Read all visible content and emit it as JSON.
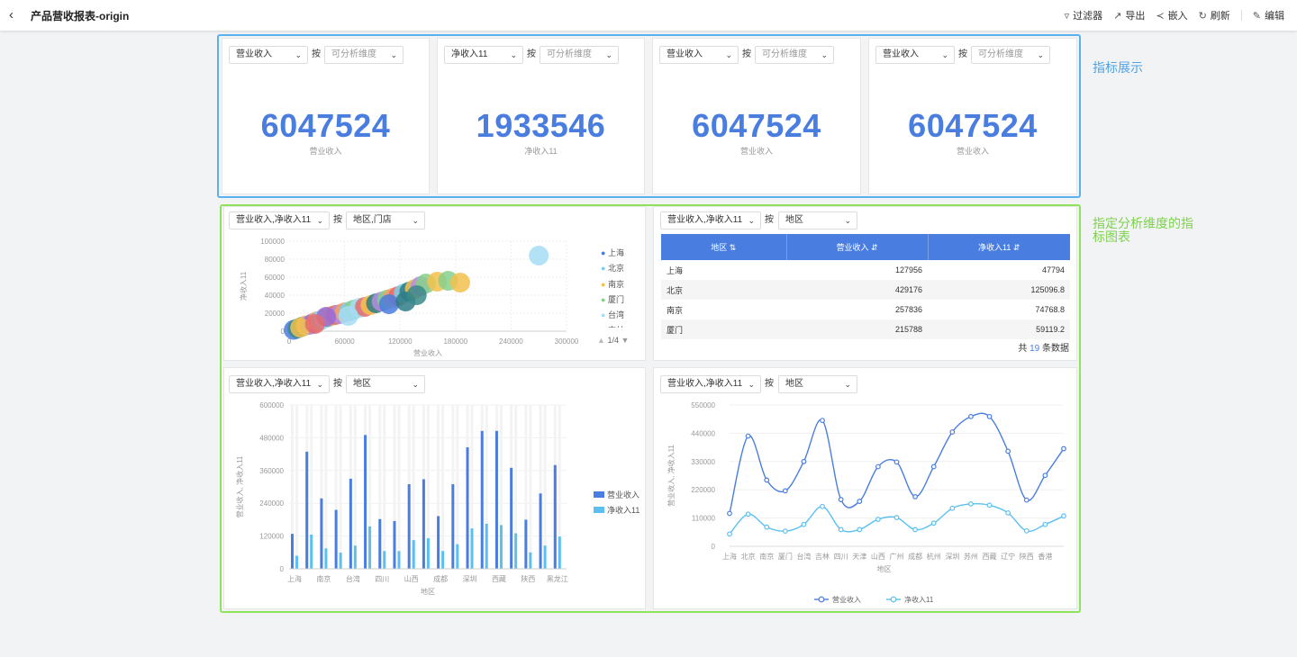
{
  "header": {
    "title": "产品营收报表-origin",
    "tools": [
      {
        "icon": "filter-icon",
        "label": "过滤器"
      },
      {
        "icon": "export-icon",
        "label": "导出"
      },
      {
        "icon": "share-icon",
        "label": "嵌入"
      },
      {
        "icon": "refresh-icon",
        "label": "刷新"
      },
      {
        "icon": "edit-icon",
        "label": "编辑"
      }
    ]
  },
  "annotations": {
    "kpi": "指标展示",
    "charts": "指定分析维度的指标图表"
  },
  "by_label": "按",
  "kpis": [
    {
      "metric": "营业收入",
      "dim_placeholder": "可分析维度",
      "value": "6047524",
      "label": "营业收入"
    },
    {
      "metric": "净收入11",
      "dim_placeholder": "可分析维度",
      "value": "1933546",
      "label": "净收入11"
    },
    {
      "metric": "营业收入",
      "dim_placeholder": "可分析维度",
      "value": "6047524",
      "label": "营业收入"
    },
    {
      "metric": "营业收入",
      "dim_placeholder": "可分析维度",
      "value": "6047524",
      "label": "营业收入"
    }
  ],
  "scatter_panel": {
    "metric": "营业收入,净收入11",
    "dim": "地区,门店",
    "pager": "1/4",
    "legend": [
      "上海",
      "北京",
      "南京",
      "厦门",
      "台湾",
      "吉林"
    ]
  },
  "table_panel": {
    "metric": "营业收入,净收入11",
    "dim": "地区",
    "columns": [
      "地区 ⇅",
      "营业收入 ⇵",
      "净收入11 ⇵"
    ],
    "rows": [
      [
        "上海",
        "127956",
        "47794"
      ],
      [
        "北京",
        "429176",
        "125096.8"
      ],
      [
        "南京",
        "257836",
        "74768.8"
      ],
      [
        "厦门",
        "215788",
        "59119.2"
      ]
    ],
    "total_prefix": "共",
    "total_count": "19",
    "total_suffix": "条数据"
  },
  "bar_panel": {
    "metric": "营业收入,净收入11",
    "dim": "地区"
  },
  "line_panel": {
    "metric": "营业收入,净收入11",
    "dim": "地区"
  },
  "colors": {
    "primary": "#4a7de0",
    "secondary": "#5bc0f0"
  },
  "chart_data": [
    {
      "type": "scatter",
      "xlabel": "营业收入",
      "ylabel": "净收入11",
      "xlim": [
        0,
        300000
      ],
      "ylim": [
        0,
        100000
      ],
      "xticks": [
        "0",
        "60000",
        "120000",
        "180000",
        "240000",
        "300000"
      ],
      "yticks": [
        "0",
        "20000",
        "40000",
        "60000",
        "80000",
        "100000"
      ],
      "legend": [
        "上海",
        "北京",
        "南京",
        "厦门",
        "台湾",
        "吉林"
      ],
      "points": [
        [
          5000,
          1500,
          "#4a7de0"
        ],
        [
          9000,
          3000,
          "#3b8a8a"
        ],
        [
          14000,
          5000,
          "#2e7d86"
        ],
        [
          18000,
          6500,
          "#f2c14e"
        ],
        [
          22000,
          7000,
          "#b38ee0"
        ],
        [
          26000,
          9000,
          "#9a6ad6"
        ],
        [
          30000,
          11000,
          "#f4a261"
        ],
        [
          34000,
          12000,
          "#7ecfea"
        ],
        [
          38000,
          14000,
          "#a6dcf5"
        ],
        [
          42000,
          15500,
          "#86d08c"
        ],
        [
          46000,
          17000,
          "#f2c14e"
        ],
        [
          50000,
          18000,
          "#e56b6f"
        ],
        [
          55000,
          19000,
          "#b38ee0"
        ],
        [
          60000,
          21000,
          "#f4a261"
        ],
        [
          65000,
          22000,
          "#7ecfea"
        ],
        [
          70000,
          24000,
          "#86d08c"
        ],
        [
          76000,
          26000,
          "#a6dcf5"
        ],
        [
          82000,
          27000,
          "#e56b6f"
        ],
        [
          88000,
          29000,
          "#f2c14e"
        ],
        [
          94000,
          31000,
          "#2e7d86"
        ],
        [
          100000,
          33000,
          "#b38ee0"
        ],
        [
          106000,
          35000,
          "#86d08c"
        ],
        [
          112000,
          37000,
          "#f4a261"
        ],
        [
          118000,
          39000,
          "#e56b6f"
        ],
        [
          124000,
          42000,
          "#7ecfea"
        ],
        [
          130000,
          44000,
          "#2e7d86"
        ],
        [
          136000,
          47000,
          "#f2c14e"
        ],
        [
          142000,
          50000,
          "#b38ee0"
        ],
        [
          148000,
          53000,
          "#86d08c"
        ],
        [
          160000,
          55000,
          "#f2c14e"
        ],
        [
          172000,
          56000,
          "#86d08c"
        ],
        [
          185000,
          54000,
          "#f2c14e"
        ],
        [
          270000,
          84000,
          "#a6dcf5"
        ],
        [
          40000,
          16000,
          "#9a6ad6"
        ],
        [
          108000,
          30000,
          "#4a7de0"
        ],
        [
          126000,
          33000,
          "#2e7d86"
        ],
        [
          138000,
          40000,
          "#3b8a8a"
        ],
        [
          12000,
          4000,
          "#f2c14e"
        ],
        [
          28000,
          8000,
          "#e56b6f"
        ],
        [
          64000,
          17000,
          "#a6dcf5"
        ]
      ]
    },
    {
      "type": "bar",
      "xlabel": "地区",
      "ylabel": "营业收入, 净收入11",
      "ylim": [
        0,
        600000
      ],
      "yticks": [
        "0",
        "120000",
        "240000",
        "360000",
        "480000",
        "600000"
      ],
      "categories": [
        "上海",
        "北京",
        "南京",
        "厦门",
        "台湾",
        "吉林",
        "四川",
        "天津",
        "山西",
        "广州",
        "成都",
        "杭州",
        "深圳",
        "苏州",
        "西藏",
        "辽宁",
        "陕西",
        "香港",
        "黑龙江"
      ],
      "xtick_labels": [
        "上海",
        "南京",
        "台湾",
        "四川",
        "山西",
        "成都",
        "深圳",
        "西藏",
        "陕西",
        "黑龙江"
      ],
      "series": [
        {
          "name": "营业收入",
          "values": [
            127956,
            429176,
            257836,
            215788,
            330000,
            490000,
            182000,
            175000,
            310000,
            328000,
            193000,
            310000,
            445000,
            505000,
            505000,
            370000,
            180000,
            276000,
            380000
          ]
        },
        {
          "name": "净收入11",
          "values": [
            47794,
            125096.8,
            74768.8,
            59119.2,
            85000,
            155000,
            65000,
            65000,
            105000,
            112000,
            65000,
            90000,
            148000,
            165000,
            160000,
            130000,
            60000,
            85000,
            118000
          ]
        }
      ]
    },
    {
      "type": "line",
      "xlabel": "地区",
      "ylabel": "营业收入, 净收入11",
      "ylim": [
        0,
        550000
      ],
      "yticks": [
        "0",
        "110000",
        "220000",
        "330000",
        "440000",
        "550000"
      ],
      "categories": [
        "上海",
        "北京",
        "南京",
        "厦门",
        "台湾",
        "吉林",
        "四川",
        "天津",
        "山西",
        "广州",
        "成都",
        "杭州",
        "深圳",
        "苏州",
        "西藏",
        "辽宁",
        "陕西",
        "香港",
        "黑龙江"
      ],
      "xtick_labels": [
        "上海",
        "北京",
        "南京",
        "厦门",
        "台湾",
        "吉林",
        "四川",
        "天津",
        "山西",
        "广州",
        "成都",
        "杭州",
        "深圳",
        "苏州",
        "西藏",
        "辽宁",
        "陕西",
        "香港"
      ],
      "series": [
        {
          "name": "营业收入",
          "values": [
            127956,
            429176,
            257836,
            215788,
            330000,
            490000,
            182000,
            175000,
            310000,
            328000,
            193000,
            310000,
            445000,
            505000,
            505000,
            370000,
            180000,
            276000,
            380000
          ]
        },
        {
          "name": "净收入11",
          "values": [
            47794,
            125096.8,
            74768.8,
            59119.2,
            85000,
            155000,
            65000,
            65000,
            105000,
            112000,
            65000,
            90000,
            148000,
            165000,
            160000,
            130000,
            60000,
            85000,
            118000
          ]
        }
      ]
    }
  ]
}
